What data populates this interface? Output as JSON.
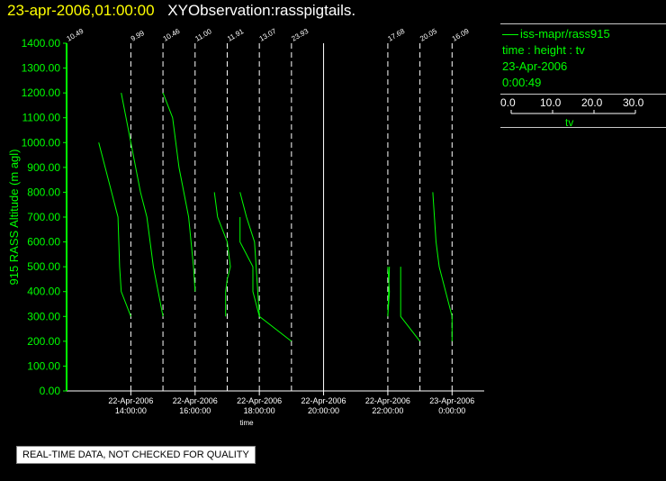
{
  "header": {
    "timestamp": "23-apr-2006,01:00:00",
    "title": "XYObservation:rasspigtails."
  },
  "legend": {
    "series_name": "iss-mapr/rass915",
    "line2": "time : height : tv",
    "line3": "23-Apr-2006",
    "line4": "0:00:49",
    "colorbar_ticks": [
      "0.0",
      "10.0",
      "20.0",
      "30.0"
    ],
    "colorbar_label": "tv"
  },
  "notice": "REAL-TIME DATA, NOT CHECKED FOR QUALITY",
  "colors": {
    "line": "#00ff00",
    "axis": "#00ff00",
    "title": "#ffff00",
    "panel_line": "#c8c8c8"
  },
  "chart_data": {
    "type": "line",
    "ylabel": "915 RASS Altitude (m agl)",
    "xlabel": "time",
    "ylim": [
      0,
      1400
    ],
    "yticks": [
      "0.00",
      "100.00",
      "200.00",
      "300.00",
      "400.00",
      "500.00",
      "600.00",
      "700.00",
      "800.00",
      "900.00",
      "1000.00",
      "1100.00",
      "1200.00",
      "1300.00",
      "1400.00"
    ],
    "xlim_hours": [
      12.0,
      25.0
    ],
    "xticks": [
      {
        "hour": 14,
        "date": "22-Apr-2006",
        "time": "14:00:00"
      },
      {
        "hour": 16,
        "date": "22-Apr-2006",
        "time": "16:00:00"
      },
      {
        "hour": 18,
        "date": "22-Apr-2006",
        "time": "18:00:00"
      },
      {
        "hour": 20,
        "date": "22-Apr-2006",
        "time": "20:00:00"
      },
      {
        "hour": 22,
        "date": "22-Apr-2006",
        "time": "22:00:00"
      },
      {
        "hour": 24,
        "date": "23-Apr-2006",
        "time": "0:00:00"
      }
    ],
    "profiles": [
      {
        "hour": 12.0,
        "label": "10.49",
        "style": "dashed",
        "points": [
          [
            12.0,
            0
          ],
          [
            12.0,
            1400
          ]
        ]
      },
      {
        "hour": 14.0,
        "label": "9.99",
        "style": "dashed",
        "points": [
          [
            13.0,
            1000
          ],
          [
            13.4,
            800
          ],
          [
            13.6,
            700
          ],
          [
            13.65,
            500
          ],
          [
            13.7,
            400
          ],
          [
            14.0,
            300
          ]
        ]
      },
      {
        "hour": 15.0,
        "label": "10.46",
        "style": "dashed",
        "points": [
          [
            13.7,
            1200
          ],
          [
            14.0,
            1000
          ],
          [
            14.3,
            800
          ],
          [
            14.5,
            700
          ],
          [
            14.7,
            500
          ],
          [
            15.0,
            300
          ]
        ]
      },
      {
        "hour": 16.0,
        "label": "11.00",
        "style": "dashed",
        "points": [
          [
            15.0,
            1200
          ],
          [
            15.3,
            1100
          ],
          [
            15.5,
            900
          ],
          [
            15.8,
            700
          ],
          [
            15.95,
            500
          ],
          [
            16.0,
            400
          ]
        ]
      },
      {
        "hour": 17.0,
        "label": "11.91",
        "style": "dashed",
        "points": [
          [
            16.6,
            800
          ],
          [
            16.7,
            700
          ],
          [
            17.0,
            600
          ],
          [
            17.1,
            500
          ],
          [
            17.0,
            450
          ],
          [
            16.95,
            400
          ],
          [
            16.95,
            300
          ]
        ]
      },
      {
        "hour": 18.0,
        "label": "13.07",
        "style": "dashed",
        "points": [
          [
            17.4,
            800
          ],
          [
            17.5,
            750
          ],
          [
            17.6,
            700
          ],
          [
            17.85,
            600
          ],
          [
            17.9,
            500
          ],
          [
            17.95,
            400
          ],
          [
            18.0,
            300
          ],
          [
            19.0,
            200
          ]
        ]
      },
      {
        "hour": 19.0,
        "label": "23.93",
        "style": "dashed",
        "points": [
          [
            17.4,
            700
          ],
          [
            17.4,
            600
          ],
          [
            17.8,
            500
          ],
          [
            17.8,
            400
          ],
          [
            18.0,
            300
          ]
        ]
      },
      {
        "hour": 20.0,
        "label": "",
        "style": "solid",
        "points": []
      },
      {
        "hour": 22.0,
        "label": "17.68",
        "style": "dashed",
        "points": [
          [
            22.0,
            500
          ],
          [
            22.05,
            400
          ],
          [
            22.0,
            300
          ],
          [
            22.05,
            500
          ]
        ]
      },
      {
        "hour": 23.0,
        "label": "20.05",
        "style": "dashed",
        "points": [
          [
            22.4,
            500
          ],
          [
            22.4,
            300
          ],
          [
            23.0,
            200
          ]
        ]
      },
      {
        "hour": 24.0,
        "label": "16.09",
        "style": "dashed",
        "points": [
          [
            23.4,
            800
          ],
          [
            23.5,
            600
          ],
          [
            23.6,
            500
          ],
          [
            24.0,
            300
          ],
          [
            24.0,
            200
          ]
        ]
      }
    ]
  }
}
